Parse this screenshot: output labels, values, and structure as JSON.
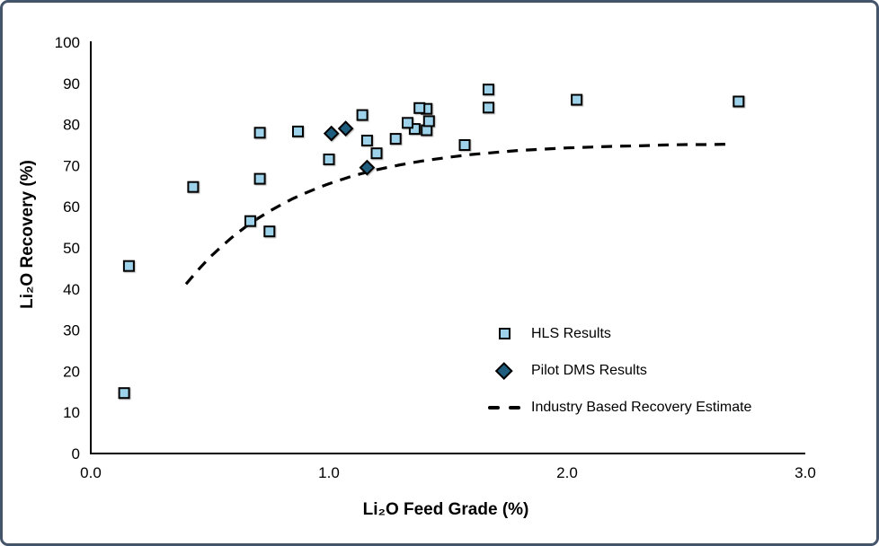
{
  "frame": {
    "border_color": "#44546A",
    "background": "#FFFFFF"
  },
  "chart_data": {
    "type": "scatter",
    "title": "",
    "xlabel": "Li₂O Feed Grade (%)",
    "ylabel": "Li₂O Recovery (%)",
    "grid": false,
    "legend_position": "inside lower right",
    "x_axis": {
      "min": 0,
      "max": 3,
      "tick_values": [
        0,
        1,
        2,
        3
      ],
      "tick_labels": [
        "0.0",
        "1.0",
        "2.0",
        "3.0"
      ]
    },
    "y_axis": {
      "min": 0,
      "max": 100,
      "tick_values": [
        0,
        10,
        20,
        30,
        40,
        50,
        60,
        70,
        80,
        90,
        100
      ],
      "tick_labels": [
        "0",
        "10",
        "20",
        "30",
        "40",
        "50",
        "60",
        "70",
        "80",
        "90",
        "100"
      ]
    },
    "series": [
      {
        "name": "HLS Results",
        "marker": "square",
        "fill": "#9ED2EA",
        "stroke": "#000000",
        "points": [
          [
            0.14,
            14.7
          ],
          [
            0.16,
            45.6
          ],
          [
            0.43,
            64.8
          ],
          [
            0.67,
            56.5
          ],
          [
            0.71,
            66.8
          ],
          [
            0.71,
            78.0
          ],
          [
            0.75,
            54.0
          ],
          [
            0.87,
            78.3
          ],
          [
            1.0,
            71.5
          ],
          [
            1.14,
            82.3
          ],
          [
            1.16,
            76.1
          ],
          [
            1.2,
            73.0
          ],
          [
            1.28,
            76.5
          ],
          [
            1.36,
            78.9
          ],
          [
            1.33,
            80.4
          ],
          [
            1.41,
            78.6
          ],
          [
            1.42,
            80.8
          ],
          [
            1.41,
            83.8
          ],
          [
            1.38,
            84.0
          ],
          [
            1.57,
            75.0
          ],
          [
            1.67,
            88.5
          ],
          [
            1.67,
            84.1
          ],
          [
            2.04,
            86.0
          ],
          [
            2.72,
            85.6
          ]
        ]
      },
      {
        "name": "Pilot DMS Results",
        "marker": "diamond",
        "fill": "#1E5D7D",
        "stroke": "#000000",
        "points": [
          [
            1.01,
            77.8
          ],
          [
            1.07,
            79.0
          ],
          [
            1.16,
            69.5
          ]
        ]
      },
      {
        "name": "Industry Based Recovery Estimate",
        "marker": "dashed-line",
        "color": "#000000",
        "points": [
          [
            0.4,
            41.2
          ],
          [
            0.45,
            44.6
          ],
          [
            0.5,
            47.7
          ],
          [
            0.55,
            50.4
          ],
          [
            0.6,
            52.9
          ],
          [
            0.65,
            55.1
          ],
          [
            0.7,
            57.1
          ],
          [
            0.75,
            58.9
          ],
          [
            0.8,
            60.5
          ],
          [
            0.85,
            62.0
          ],
          [
            0.9,
            63.3
          ],
          [
            0.95,
            64.5
          ],
          [
            1.0,
            65.6
          ],
          [
            1.1,
            67.5
          ],
          [
            1.2,
            69.0
          ],
          [
            1.3,
            70.2
          ],
          [
            1.4,
            71.2
          ],
          [
            1.5,
            72.0
          ],
          [
            1.6,
            72.7
          ],
          [
            1.7,
            73.2
          ],
          [
            1.8,
            73.7
          ],
          [
            1.9,
            74.0
          ],
          [
            2.0,
            74.3
          ],
          [
            2.1,
            74.5
          ],
          [
            2.2,
            74.7
          ],
          [
            2.3,
            74.8
          ],
          [
            2.4,
            75.0
          ],
          [
            2.5,
            75.1
          ],
          [
            2.6,
            75.1
          ],
          [
            2.67,
            75.2
          ]
        ]
      }
    ]
  }
}
